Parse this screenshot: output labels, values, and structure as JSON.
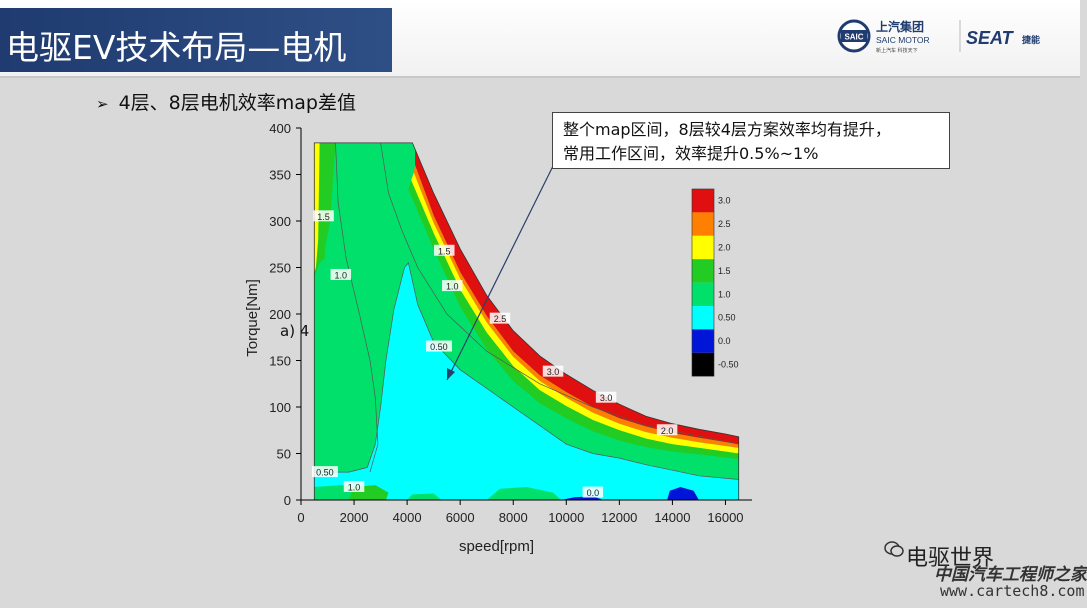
{
  "header": {
    "title": "电驱EV技术布局—电机",
    "logo_saic_name": "上汽集团",
    "logo_saic_sub": "SAIC MOTOR",
    "logo_saic_tag": "新上汽车 科技天下",
    "logo_saic_badge": "SAIC",
    "logo_seat_name": "SEAT",
    "logo_seat_sub": "捷能"
  },
  "bullet": {
    "marker": "➢",
    "text": "4层、8层电机效率map差值"
  },
  "annotation": {
    "line1": "整个map区间，8层较4层方案效率均有提升，",
    "line2": "常用工作区间，效率提升0.5%~1%"
  },
  "partial_label": "a) 4",
  "watermark": {
    "line1": "电驱世界",
    "line2": "中国汽车工程师之家",
    "line3": "www.cartech8.com"
  },
  "colors": {
    "title_bg": "#2a4a80",
    "black": "#000000",
    "blue": "#0015d8",
    "cyan": "#00ffff",
    "green": "#00e06a",
    "lime": "#22cc22",
    "yellow": "#ffff00",
    "orange": "#ff8000",
    "red": "#e01010"
  },
  "chart_data": {
    "type": "contour",
    "xlabel": "speed[rpm]",
    "ylabel": "Torque[Nm]",
    "xlim": [
      0,
      17000
    ],
    "ylim": [
      0,
      400
    ],
    "xticks": [
      0,
      2000,
      4000,
      6000,
      8000,
      10000,
      12000,
      14000,
      16000
    ],
    "yticks": [
      0,
      50,
      100,
      150,
      200,
      250,
      300,
      350,
      400
    ],
    "contour_labels": [
      {
        "text": "1.5",
        "x": 850,
        "y": 305
      },
      {
        "text": "1.0",
        "x": 1500,
        "y": 242
      },
      {
        "text": "1.5",
        "x": 5400,
        "y": 268
      },
      {
        "text": "1.0",
        "x": 5700,
        "y": 230
      },
      {
        "text": "2.5",
        "x": 7500,
        "y": 195
      },
      {
        "text": "0.50",
        "x": 5200,
        "y": 165
      },
      {
        "text": "3.0",
        "x": 9500,
        "y": 138
      },
      {
        "text": "3.0",
        "x": 11500,
        "y": 110
      },
      {
        "text": "2.0",
        "x": 13800,
        "y": 75
      },
      {
        "text": "0.50",
        "x": 900,
        "y": 30
      },
      {
        "text": "1.0",
        "x": 2000,
        "y": 14
      },
      {
        "text": "0.0",
        "x": 11000,
        "y": 8
      }
    ],
    "legend": {
      "levels": [
        "3.0",
        "2.5",
        "2.0",
        "1.5",
        "1.0",
        "0.50",
        "0.0",
        "-0.50"
      ],
      "colors": [
        "#e01010",
        "#ff8000",
        "#ffff00",
        "#22cc22",
        "#00e06a",
        "#00ffff",
        "#0015d8",
        "#000000"
      ]
    }
  }
}
